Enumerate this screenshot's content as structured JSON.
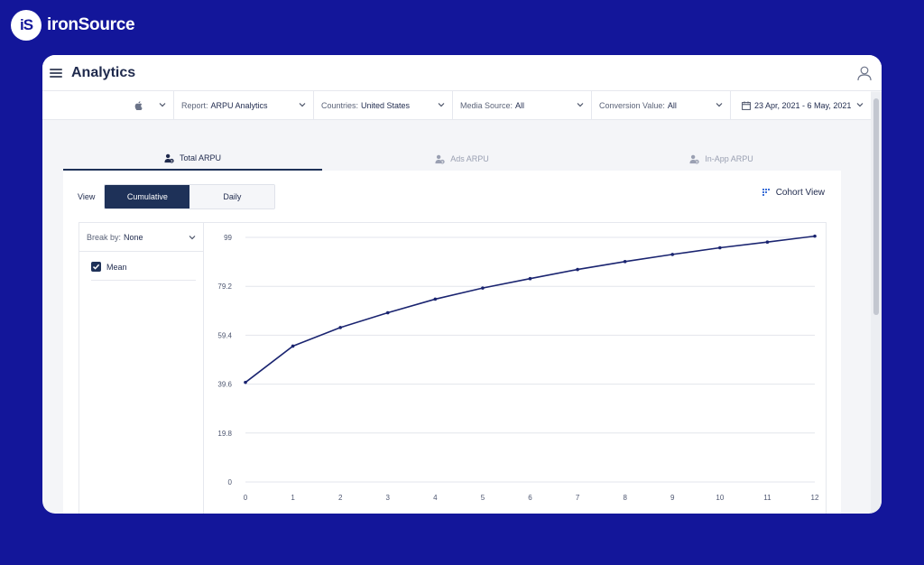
{
  "brand": {
    "logo_text": "iS",
    "name": "ironSource"
  },
  "header": {
    "title": "Analytics",
    "user_icon": "user-icon",
    "menu_icon": "hamburger-icon"
  },
  "filters": {
    "platform": {
      "icon": "apple-icon"
    },
    "report": {
      "label": "Report:",
      "value": "ARPU Analytics"
    },
    "countries": {
      "label": "Countries:",
      "value": "United States"
    },
    "media_source": {
      "label": "Media Source:",
      "value": "All"
    },
    "conversion_value": {
      "label": "Conversion Value:",
      "value": "All"
    },
    "date_range": {
      "value": "23 Apr, 2021 - 6 May, 2021"
    }
  },
  "tabs": [
    {
      "label": "Total ARPU",
      "active": true
    },
    {
      "label": "Ads ARPU",
      "active": false
    },
    {
      "label": "In-App ARPU",
      "active": false
    }
  ],
  "view": {
    "label": "View",
    "options": [
      "Cumulative",
      "Daily"
    ],
    "selected": "Cumulative",
    "cohort_label": "Cohort View"
  },
  "breakdown": {
    "label": "Break by:",
    "value": "None",
    "legend": [
      {
        "name": "Mean",
        "checked": true
      }
    ]
  },
  "colors": {
    "background": "#13169a",
    "accent": "#1e3158",
    "line": "#1a2470"
  },
  "chart_data": {
    "type": "line",
    "title": "",
    "xlabel": "",
    "ylabel": "",
    "x": [
      0,
      1,
      2,
      3,
      4,
      5,
      6,
      7,
      8,
      9,
      10,
      11,
      12
    ],
    "xticks": [
      "0",
      "1",
      "2",
      "3",
      "4",
      "5",
      "6",
      "7",
      "8",
      "9",
      "10",
      "11",
      "12"
    ],
    "yticks": [
      "0",
      "19.8",
      "39.6",
      "59.4",
      "79.2",
      "99"
    ],
    "ytick_values": [
      0,
      19.8,
      39.6,
      59.4,
      79.2,
      99
    ],
    "ylim": [
      0,
      99
    ],
    "grid": true,
    "series": [
      {
        "name": "Mean",
        "values": [
          40.3,
          55.0,
          62.5,
          68.5,
          74.0,
          78.5,
          82.3,
          86.0,
          89.2,
          92.1,
          94.8,
          97.1,
          99.5
        ]
      }
    ]
  }
}
